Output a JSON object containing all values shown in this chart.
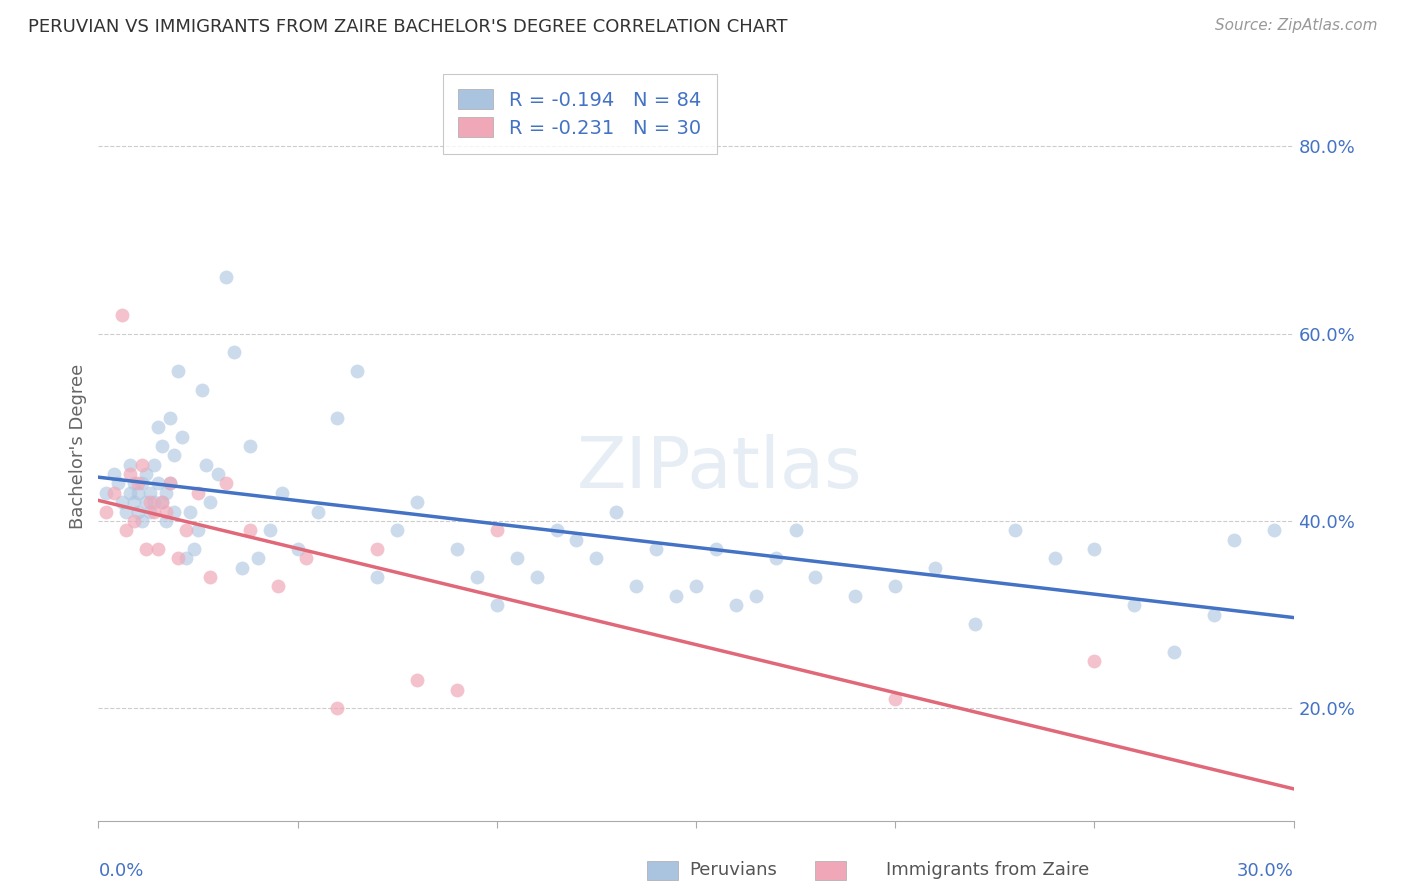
{
  "title": "PERUVIAN VS IMMIGRANTS FROM ZAIRE BACHELOR'S DEGREE CORRELATION CHART",
  "source": "Source: ZipAtlas.com",
  "ylabel": "Bachelor's Degree",
  "watermark": "ZIPatlas",
  "peruvian_R": -0.194,
  "peruvian_N": 84,
  "zaire_R": -0.231,
  "zaire_N": 30,
  "legend_label_1": "Peruvians",
  "legend_label_2": "Immigrants from Zaire",
  "blue_color": "#aac4e0",
  "pink_color": "#f0a8b8",
  "blue_line_color": "#4472C4",
  "pink_line_color": "#E06878",
  "grid_color": "#cccccc",
  "axis_label_color": "#4472C4",
  "ylim": [
    0.08,
    0.88
  ],
  "xlim": [
    0.0,
    0.3
  ],
  "yticks": [
    0.2,
    0.4,
    0.6,
    0.8
  ],
  "ytick_labels": [
    "20.0%",
    "40.0%",
    "60.0%",
    "80.0%"
  ],
  "xticks": [
    0.0,
    0.05,
    0.1,
    0.15,
    0.2,
    0.25,
    0.3
  ],
  "peruvian_x": [
    0.002,
    0.004,
    0.005,
    0.006,
    0.007,
    0.008,
    0.008,
    0.009,
    0.009,
    0.01,
    0.01,
    0.011,
    0.011,
    0.012,
    0.012,
    0.013,
    0.013,
    0.014,
    0.014,
    0.015,
    0.015,
    0.016,
    0.016,
    0.017,
    0.017,
    0.018,
    0.018,
    0.019,
    0.019,
    0.02,
    0.021,
    0.022,
    0.023,
    0.024,
    0.025,
    0.026,
    0.027,
    0.028,
    0.03,
    0.032,
    0.034,
    0.036,
    0.038,
    0.04,
    0.043,
    0.046,
    0.05,
    0.055,
    0.06,
    0.065,
    0.07,
    0.075,
    0.08,
    0.09,
    0.095,
    0.1,
    0.105,
    0.11,
    0.115,
    0.12,
    0.125,
    0.13,
    0.135,
    0.14,
    0.145,
    0.15,
    0.155,
    0.16,
    0.165,
    0.17,
    0.175,
    0.18,
    0.19,
    0.2,
    0.21,
    0.22,
    0.23,
    0.24,
    0.25,
    0.26,
    0.27,
    0.28,
    0.285,
    0.295
  ],
  "peruvian_y": [
    0.43,
    0.45,
    0.44,
    0.42,
    0.41,
    0.46,
    0.43,
    0.42,
    0.44,
    0.41,
    0.43,
    0.4,
    0.44,
    0.42,
    0.45,
    0.41,
    0.43,
    0.46,
    0.42,
    0.5,
    0.44,
    0.48,
    0.42,
    0.4,
    0.43,
    0.51,
    0.44,
    0.47,
    0.41,
    0.56,
    0.49,
    0.36,
    0.41,
    0.37,
    0.39,
    0.54,
    0.46,
    0.42,
    0.45,
    0.66,
    0.58,
    0.35,
    0.48,
    0.36,
    0.39,
    0.43,
    0.37,
    0.41,
    0.51,
    0.56,
    0.34,
    0.39,
    0.42,
    0.37,
    0.34,
    0.31,
    0.36,
    0.34,
    0.39,
    0.38,
    0.36,
    0.41,
    0.33,
    0.37,
    0.32,
    0.33,
    0.37,
    0.31,
    0.32,
    0.36,
    0.39,
    0.34,
    0.32,
    0.33,
    0.35,
    0.29,
    0.39,
    0.36,
    0.37,
    0.31,
    0.26,
    0.3,
    0.38,
    0.39
  ],
  "zaire_x": [
    0.002,
    0.004,
    0.006,
    0.007,
    0.008,
    0.009,
    0.01,
    0.011,
    0.012,
    0.013,
    0.014,
    0.015,
    0.016,
    0.017,
    0.018,
    0.02,
    0.022,
    0.025,
    0.028,
    0.032,
    0.038,
    0.045,
    0.052,
    0.06,
    0.07,
    0.08,
    0.09,
    0.1,
    0.2,
    0.25
  ],
  "zaire_y": [
    0.41,
    0.43,
    0.62,
    0.39,
    0.45,
    0.4,
    0.44,
    0.46,
    0.37,
    0.42,
    0.41,
    0.37,
    0.42,
    0.41,
    0.44,
    0.36,
    0.39,
    0.43,
    0.34,
    0.44,
    0.39,
    0.33,
    0.36,
    0.2,
    0.37,
    0.23,
    0.22,
    0.39,
    0.21,
    0.25
  ]
}
